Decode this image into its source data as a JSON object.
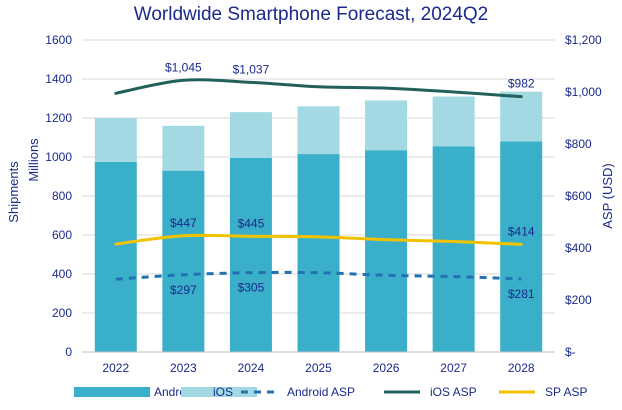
{
  "chart_data": {
    "type": "bar",
    "title": "Worldwide Smartphone Forecast, 2024Q2",
    "categories": [
      "2022",
      "2023",
      "2024",
      "2025",
      "2026",
      "2027",
      "2028"
    ],
    "y_left": {
      "label_outer": "Shipments",
      "label_inner": "Millions",
      "ticks": [
        0,
        200,
        400,
        600,
        800,
        1000,
        1200,
        1400,
        1600
      ],
      "tick_labels": [
        "0",
        "200",
        "400",
        "600",
        "800",
        "1000",
        "1200",
        "1400",
        "1600"
      ],
      "range": [
        0,
        1600
      ]
    },
    "y_right": {
      "label": "ASP (USD)",
      "ticks": [
        0,
        200,
        400,
        600,
        800,
        1000,
        1200
      ],
      "tick_labels": [
        "$-",
        "$200",
        "$400",
        "$600",
        "$800",
        "$1,000",
        "$1,200"
      ],
      "range": [
        0,
        1200
      ]
    },
    "grid": true,
    "legend_position": "bottom",
    "bar_series": [
      {
        "name": "Android",
        "color": "#3aafc9",
        "values": [
          975,
          930,
          995,
          1015,
          1035,
          1055,
          1080
        ]
      },
      {
        "name": "iOS",
        "color": "#a2d9e3",
        "values": [
          225,
          230,
          235,
          245,
          255,
          255,
          255
        ]
      }
    ],
    "line_series": [
      {
        "name": "Android ASP",
        "color": "#2271b3",
        "style": "dashed",
        "axis": "right",
        "values": [
          280,
          297,
          305,
          305,
          295,
          290,
          281
        ]
      },
      {
        "name": "iOS ASP",
        "color": "#22605c",
        "style": "solid",
        "axis": "right",
        "values": [
          995,
          1045,
          1037,
          1020,
          1015,
          1000,
          982
        ]
      },
      {
        "name": "SP ASP",
        "color": "#f2c200",
        "style": "solid",
        "axis": "right",
        "values": [
          415,
          447,
          445,
          443,
          432,
          425,
          414
        ]
      }
    ],
    "data_labels": [
      {
        "series": "iOS ASP",
        "index": 1,
        "text": "$1,045",
        "position": "above"
      },
      {
        "series": "iOS ASP",
        "index": 2,
        "text": "$1,037",
        "position": "above"
      },
      {
        "series": "iOS ASP",
        "index": 6,
        "text": "$982",
        "position": "above"
      },
      {
        "series": "SP ASP",
        "index": 1,
        "text": "$447",
        "position": "above"
      },
      {
        "series": "SP ASP",
        "index": 2,
        "text": "$445",
        "position": "above"
      },
      {
        "series": "SP ASP",
        "index": 6,
        "text": "$414",
        "position": "above"
      },
      {
        "series": "Android ASP",
        "index": 1,
        "text": "$297",
        "position": "below"
      },
      {
        "series": "Android ASP",
        "index": 2,
        "text": "$305",
        "position": "below"
      },
      {
        "series": "Android ASP",
        "index": 6,
        "text": "$281",
        "position": "below"
      }
    ],
    "legend": [
      "Android",
      "iOS",
      "Android ASP",
      "iOS ASP",
      "SP ASP"
    ]
  }
}
